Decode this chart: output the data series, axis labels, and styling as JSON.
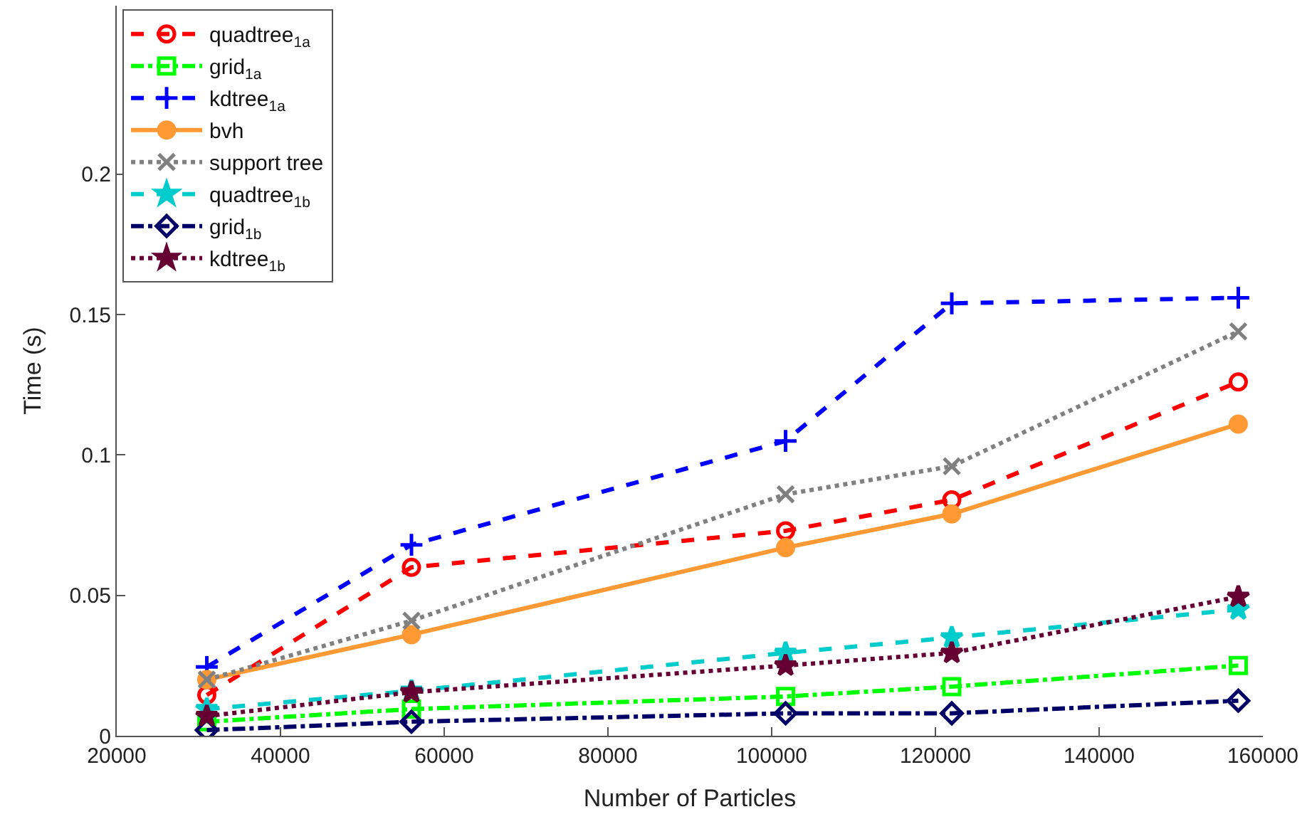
{
  "chart_data": {
    "type": "line",
    "xlabel": "Number of Particles",
    "ylabel": "Time (s)",
    "x": [
      31000,
      56000,
      101700,
      122000,
      157000
    ],
    "xlim": [
      20000,
      160000
    ],
    "xticks": [
      20000,
      40000,
      60000,
      80000,
      100000,
      120000,
      140000,
      160000
    ],
    "ylim": [
      0,
      0.26
    ],
    "yticks": [
      0,
      0.05,
      0.1,
      0.15,
      0.2
    ],
    "legend": "top left",
    "series": [
      {
        "name": "quadtree$_{1a}$",
        "color": "#ff0000",
        "marker": "circle-open",
        "line_style": "dashed",
        "values": [
          0.0145,
          0.06,
          0.073,
          0.084,
          0.126
        ]
      },
      {
        "name": "grid$_{1a}$",
        "color": "#00ff00",
        "marker": "square-open",
        "line_style": "dashdot",
        "values": [
          0.005,
          0.0095,
          0.014,
          0.0175,
          0.025
        ]
      },
      {
        "name": "kdtree$_{1a}$",
        "color": "#0000ff",
        "marker": "cross",
        "line_style": "dashed",
        "values": [
          0.0245,
          0.068,
          0.105,
          0.154,
          0.156
        ]
      },
      {
        "name": "bvh",
        "color": "#ff9933",
        "marker": "circle",
        "line_style": "solid",
        "values": [
          0.02,
          0.036,
          0.067,
          0.079,
          0.111
        ]
      },
      {
        "name": "support tree",
        "color": "#808080",
        "marker": "x",
        "line_style": "dotted",
        "values": [
          0.02,
          0.041,
          0.086,
          0.096,
          0.144
        ]
      },
      {
        "name": "quadtree$_{1b}$",
        "color": "#00cccc",
        "marker": "star",
        "line_style": "dashed",
        "values": [
          0.0095,
          0.016,
          0.0295,
          0.035,
          0.045
        ]
      },
      {
        "name": "grid$_{1b}$",
        "color": "#000066",
        "marker": "diamond-open",
        "line_style": "dashdot",
        "values": [
          0.002,
          0.005,
          0.008,
          0.008,
          0.0125
        ]
      },
      {
        "name": "kdtree$_{1b}$",
        "color": "#660033",
        "marker": "star",
        "line_style": "dotted",
        "values": [
          0.007,
          0.0155,
          0.025,
          0.0295,
          0.0495
        ]
      }
    ]
  }
}
